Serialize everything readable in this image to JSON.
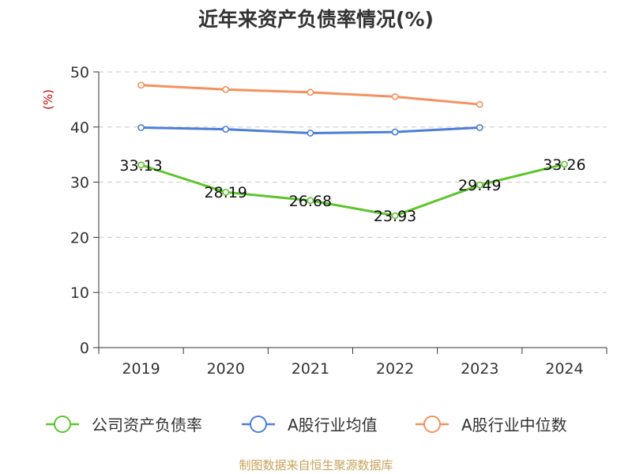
{
  "chart_data": {
    "type": "line",
    "title": "近年来资产负债率情况(%)",
    "ylabel": "(%)",
    "xlabel": "",
    "ylim": [
      0,
      50
    ],
    "yticks": [
      0,
      10,
      20,
      30,
      40,
      50
    ],
    "categories": [
      "2019",
      "2020",
      "2021",
      "2022",
      "2023",
      "2024"
    ],
    "grid": true,
    "legend_position": "bottom",
    "series": [
      {
        "name": "公司资产负债率",
        "color": "#5dc42c",
        "values": [
          33.13,
          28.19,
          26.68,
          23.93,
          29.49,
          33.26
        ],
        "labels": [
          "33.13",
          "28.19",
          "26.68",
          "23.93",
          "29.49",
          "33.26"
        ]
      },
      {
        "name": "A股行业均值",
        "color": "#4d7fd6",
        "values": [
          39.9,
          39.6,
          38.9,
          39.1,
          39.9,
          null
        ]
      },
      {
        "name": "A股行业中位数",
        "color": "#f5915e",
        "values": [
          47.6,
          46.8,
          46.3,
          45.5,
          44.1,
          null
        ]
      }
    ]
  },
  "source": "制图数据来自恒生聚源数据库"
}
